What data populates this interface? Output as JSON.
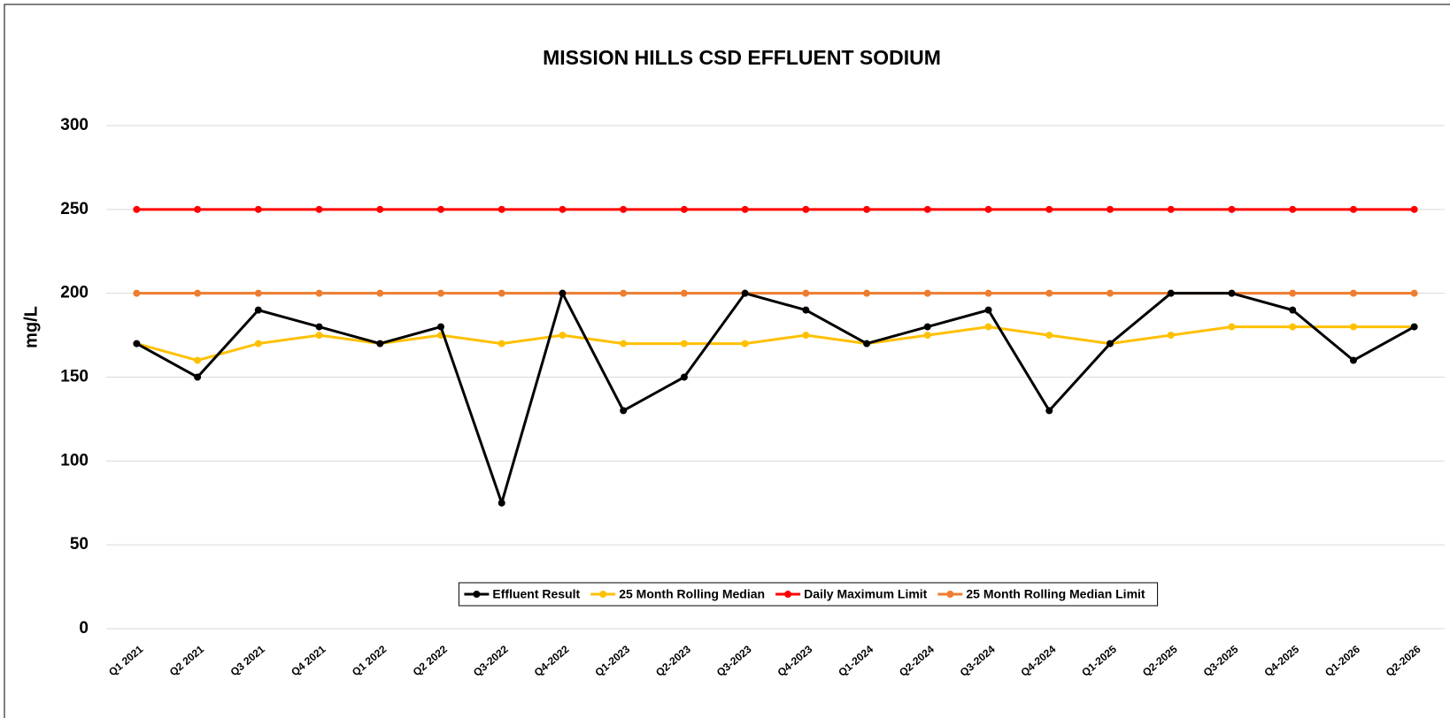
{
  "chart_data": {
    "type": "line",
    "title": "MISSION HILLS CSD EFFLUENT SODIUM",
    "y_label": "mg/L",
    "categories": [
      "Q1 2021",
      "Q2 2021",
      "Q3 2021",
      "Q4 2021",
      "Q1 2022",
      "Q2 2022",
      "Q3-2022",
      "Q4-2022",
      "Q1-2023",
      "Q2-2023",
      "Q3-2023",
      "Q4-2023",
      "Q1-2024",
      "Q2-2024",
      "Q3-2024",
      "Q4-2024",
      "Q1-2025",
      "Q2-2025",
      "Q3-2025",
      "Q4-2025",
      "Q1-2026",
      "Q2-2026"
    ],
    "series": [
      {
        "name": "Effluent Result",
        "color": "#000000",
        "values": [
          170,
          150,
          190,
          180,
          170,
          180,
          75,
          200,
          130,
          150,
          200,
          190,
          170,
          180,
          190,
          130,
          170,
          200,
          200,
          190,
          160,
          180
        ]
      },
      {
        "name": "25 Month Rolling Median",
        "color": "#ffc000",
        "values": [
          170,
          160,
          170,
          175,
          170,
          175,
          170,
          175,
          170,
          170,
          170,
          175,
          170,
          175,
          180,
          175,
          170,
          175,
          180,
          180,
          180,
          180
        ]
      },
      {
        "name": "Daily Maximum Limit",
        "color": "#ff0000",
        "values": [
          250,
          250,
          250,
          250,
          250,
          250,
          250,
          250,
          250,
          250,
          250,
          250,
          250,
          250,
          250,
          250,
          250,
          250,
          250,
          250,
          250,
          250
        ]
      },
      {
        "name": "25 Month Rolling Median Limit",
        "color": "#ed7d31",
        "values": [
          200,
          200,
          200,
          200,
          200,
          200,
          200,
          200,
          200,
          200,
          200,
          200,
          200,
          200,
          200,
          200,
          200,
          200,
          200,
          200,
          200,
          200
        ]
      }
    ],
    "ylim": [
      0,
      300
    ],
    "yticks": [
      0,
      50,
      100,
      150,
      200,
      250,
      300
    ],
    "grid": true,
    "legend": "bottom"
  }
}
